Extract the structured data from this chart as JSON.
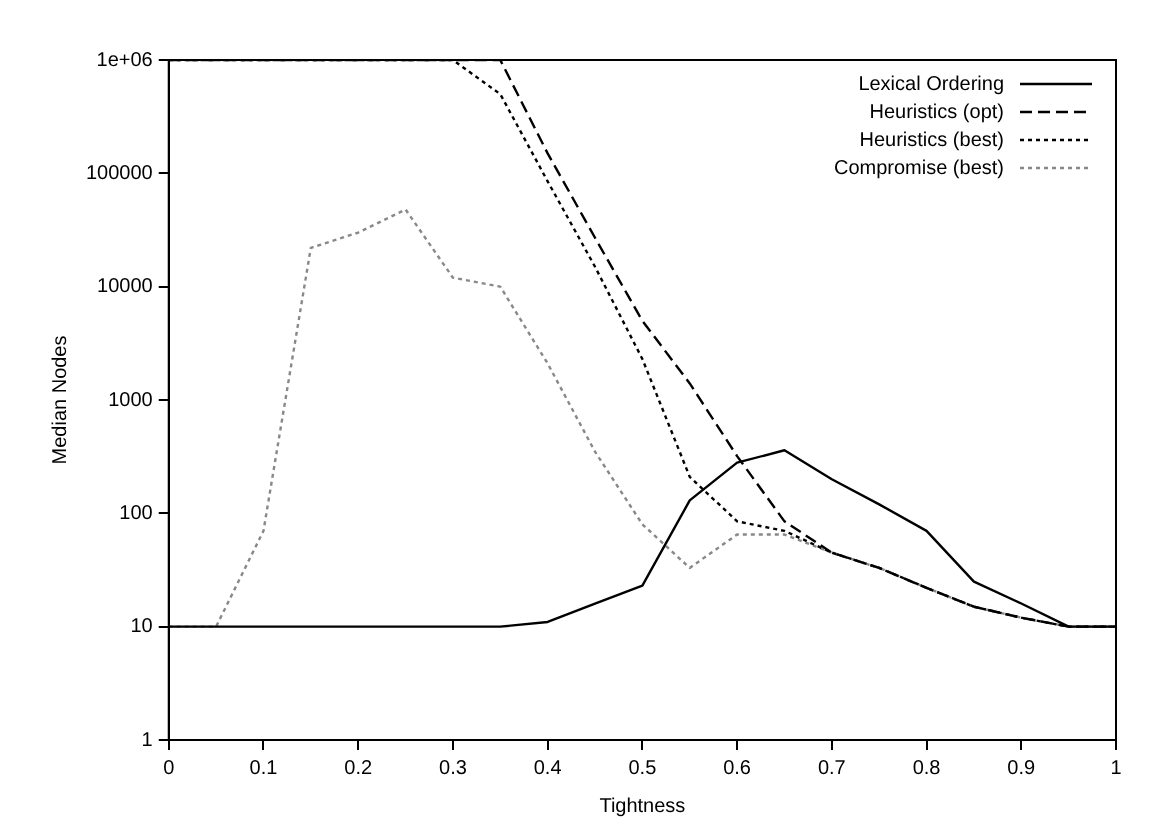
{
  "chart_data": {
    "type": "line",
    "xlabel": "Tightness",
    "ylabel": "Median Nodes",
    "x": [
      0,
      0.05,
      0.1,
      0.15,
      0.2,
      0.25,
      0.3,
      0.35,
      0.4,
      0.45,
      0.5,
      0.55,
      0.6,
      0.65,
      0.7,
      0.75,
      0.8,
      0.85,
      0.9,
      0.95,
      1
    ],
    "series": [
      {
        "name": "Lexical Ordering",
        "color": "#000000",
        "line_style": "solid",
        "values": [
          10,
          10,
          10,
          10,
          10,
          10,
          10,
          10,
          11,
          16,
          23,
          130,
          280,
          360,
          200,
          120,
          70,
          25,
          16,
          10,
          10
        ]
      },
      {
        "name": "Heuristics (opt)",
        "color": "#000000",
        "line_style": "dashed",
        "values": [
          1000000,
          1000000,
          1000000,
          1000000,
          1000000,
          1000000,
          1000000,
          1000000,
          150000,
          27000,
          5000,
          1400,
          320,
          85,
          45,
          33,
          22,
          15,
          12,
          10,
          10
        ]
      },
      {
        "name": "Heuristics (best)",
        "color": "#000000",
        "line_style": "dotted",
        "values": [
          1000000,
          1000000,
          1000000,
          1000000,
          1000000,
          1000000,
          1000000,
          500000,
          85000,
          15000,
          2300,
          210,
          85,
          70,
          45,
          33,
          22,
          15,
          12,
          10,
          10
        ]
      },
      {
        "name": "Compromise (best)",
        "color": "#888888",
        "line_style": "dotted",
        "values": [
          10,
          10,
          70,
          22000,
          30000,
          48000,
          12000,
          10000,
          2100,
          350,
          80,
          33,
          65,
          65,
          45,
          33,
          22,
          15,
          12,
          10,
          10
        ]
      }
    ],
    "log": "y",
    "xlim": [
      0,
      1
    ],
    "xticks": [
      0,
      0.1,
      0.2,
      0.3,
      0.4,
      0.5,
      0.6,
      0.7,
      0.8,
      0.9,
      1
    ],
    "ylim": [
      1,
      1000000
    ],
    "yticks": [
      1,
      10,
      100,
      1000,
      10000,
      100000,
      {
        "value": 1000000,
        "label": "1e+06"
      }
    ],
    "grid": false,
    "legend": "top right",
    "marker": "none"
  }
}
